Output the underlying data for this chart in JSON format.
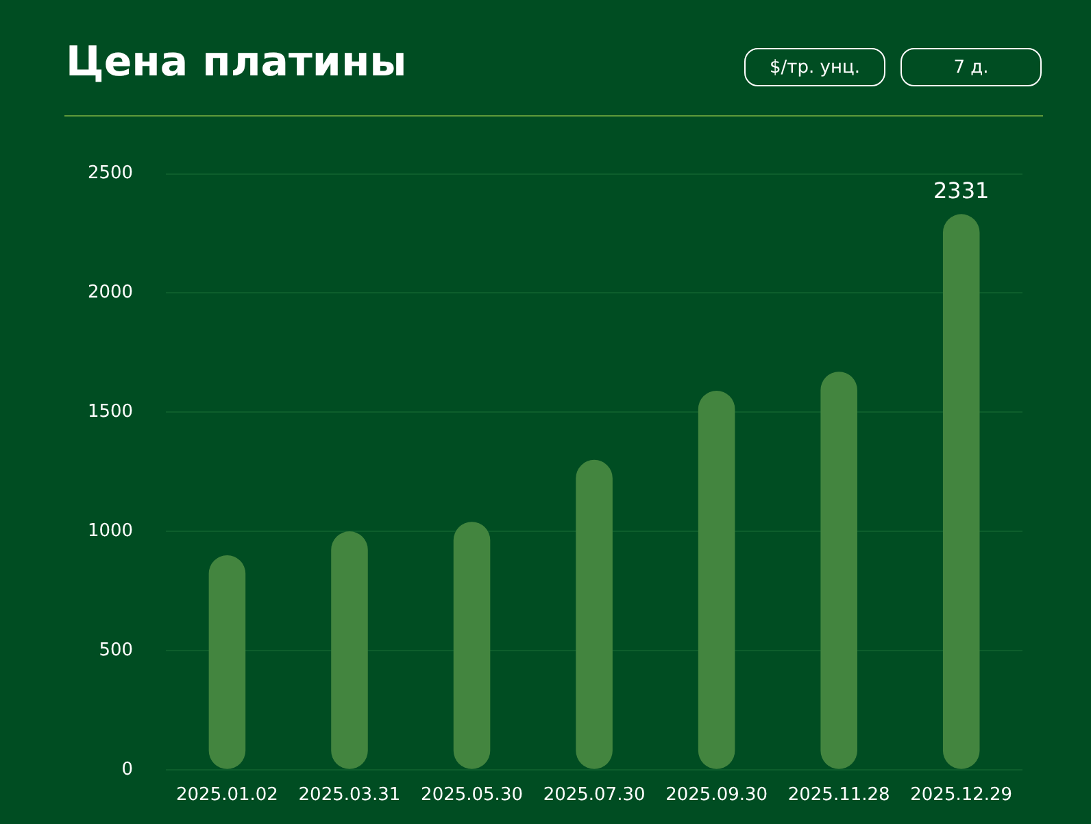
{
  "chart_data": {
    "type": "bar",
    "title": "Цена платины",
    "annotations": [
      "$/тр. унц.",
      "7 д."
    ],
    "categories": [
      "2025.01.02",
      "2025.03.31",
      "2025.05.30",
      "2025.07.30",
      "2025.09.30",
      "2025.11.28",
      "2025.12.29"
    ],
    "values": [
      900,
      1000,
      1040,
      1300,
      1590,
      1670,
      2331
    ],
    "value_labels": [
      null,
      null,
      null,
      null,
      null,
      null,
      "2331"
    ],
    "color": "#43853f",
    "ylim": [
      0,
      2500
    ],
    "yticks": [
      0,
      500,
      1000,
      1500,
      2000,
      2500
    ],
    "grid": "y",
    "legend": false
  }
}
